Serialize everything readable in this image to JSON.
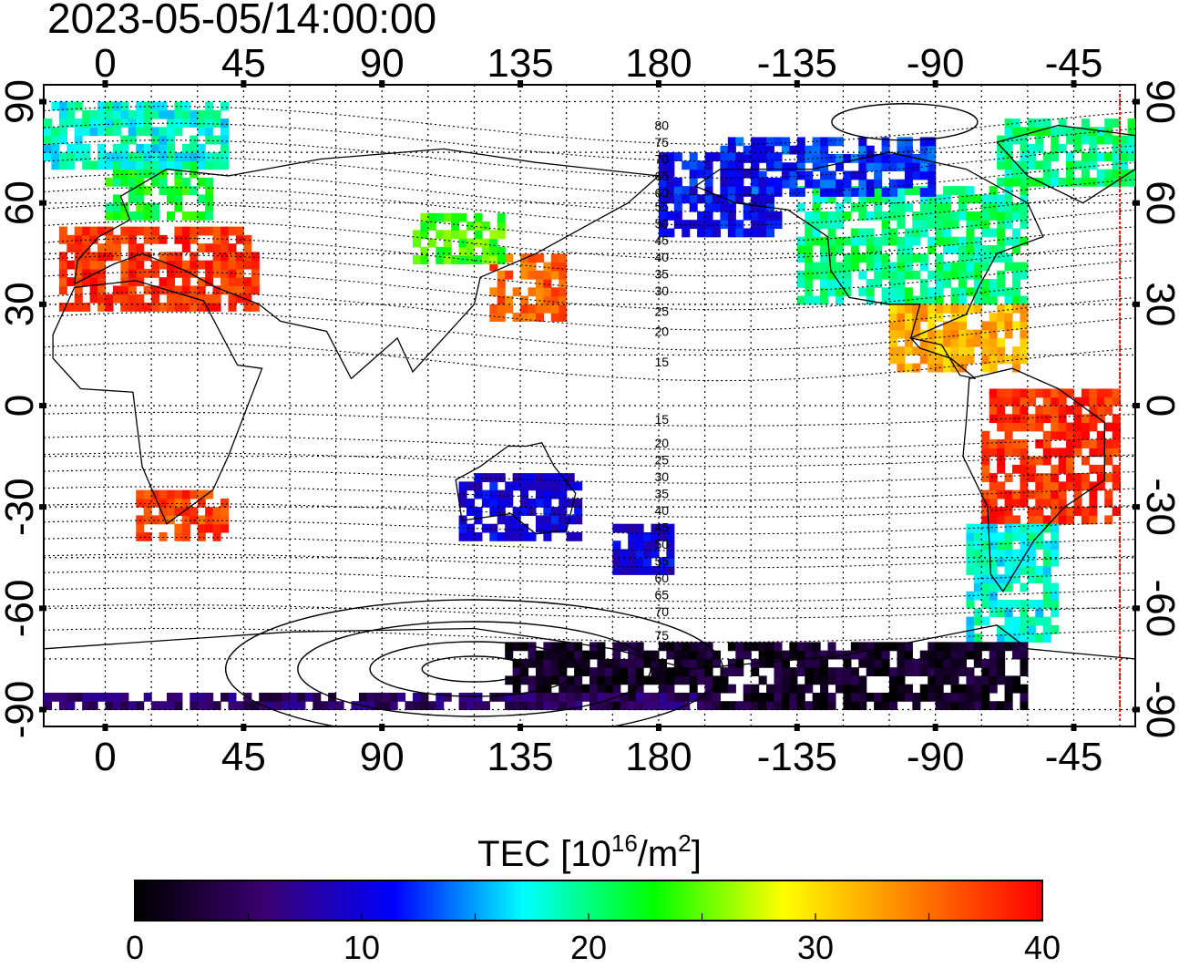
{
  "timestamp": "2023-05-05/14:00:00",
  "map": {
    "lon_ticks": [
      "0",
      "45",
      "90",
      "135",
      "180",
      "-135",
      "-90",
      "-45"
    ],
    "lon_tick_values": [
      0,
      45,
      90,
      135,
      180,
      225,
      270,
      315
    ],
    "lat_ticks": [
      "90",
      "60",
      "30",
      "0",
      "-30",
      "-60",
      "-90"
    ],
    "lat_tick_values": [
      90,
      60,
      30,
      0,
      -30,
      -60,
      -90
    ],
    "lon_range": [
      -20,
      335
    ],
    "lat_range": [
      -95,
      95
    ],
    "grid": true,
    "terminator_lon": 330,
    "contour_labels": [
      {
        "text": "80",
        "lat": 83
      },
      {
        "text": "75",
        "lat": 78
      },
      {
        "text": "70",
        "lat": 73
      },
      {
        "text": "65",
        "lat": 68
      },
      {
        "text": "60",
        "lat": 63
      },
      {
        "text": "55",
        "lat": 59
      },
      {
        "text": "50",
        "lat": 54
      },
      {
        "text": "45",
        "lat": 49
      },
      {
        "text": "40",
        "lat": 44
      },
      {
        "text": "35",
        "lat": 39
      },
      {
        "text": "30",
        "lat": 34
      },
      {
        "text": "25",
        "lat": 28
      },
      {
        "text": "20",
        "lat": 22
      },
      {
        "text": "15",
        "lat": 13
      },
      {
        "text": "15",
        "lat": -4
      },
      {
        "text": "20",
        "lat": -11
      },
      {
        "text": "25",
        "lat": -16
      },
      {
        "text": "30",
        "lat": -21
      },
      {
        "text": "35",
        "lat": -26
      },
      {
        "text": "40",
        "lat": -31
      },
      {
        "text": "45",
        "lat": -36
      },
      {
        "text": "50",
        "lat": -41
      },
      {
        "text": "55",
        "lat": -46
      },
      {
        "text": "60",
        "lat": -51
      },
      {
        "text": "65",
        "lat": -56
      },
      {
        "text": "70",
        "lat": -61
      },
      {
        "text": "75",
        "lat": -68
      }
    ]
  },
  "colorbar": {
    "label_main": "TEC  [10",
    "label_sup1": "16",
    "label_mid": "/m",
    "label_sup2": "2",
    "label_end": "]",
    "ticks": [
      "0",
      "10",
      "20",
      "30",
      "40"
    ],
    "tick_values": [
      0,
      10,
      20,
      30,
      40
    ],
    "range": [
      0,
      40
    ],
    "stops": [
      "#000000",
      "#3a0070",
      "#0000ff",
      "#00ffff",
      "#00ff00",
      "#ffff00",
      "#ff7f00",
      "#ff0000"
    ]
  },
  "tec_regions": [
    {
      "name": "europe",
      "lon": [
        -15,
        50
      ],
      "lat": [
        52,
        28
      ],
      "value": 38
    },
    {
      "name": "scandinavia",
      "lon": [
        0,
        35
      ],
      "lat": [
        72,
        55
      ],
      "value": 22
    },
    {
      "name": "arctic-europe",
      "lon": [
        -20,
        40
      ],
      "lat": [
        88,
        70
      ],
      "value": 18
    },
    {
      "name": "north-america",
      "lon": [
        225,
        300
      ],
      "lat": [
        65,
        30
      ],
      "value": 20
    },
    {
      "name": "canada-north",
      "lon": [
        200,
        270
      ],
      "lat": [
        78,
        62
      ],
      "value": 12
    },
    {
      "name": "greenland",
      "lon": [
        290,
        335
      ],
      "lat": [
        85,
        65
      ],
      "value": 20
    },
    {
      "name": "alaska",
      "lon": [
        180,
        220
      ],
      "lat": [
        75,
        50
      ],
      "value": 11
    },
    {
      "name": "caribbean",
      "lon": [
        255,
        300
      ],
      "lat": [
        30,
        10
      ],
      "value": 32
    },
    {
      "name": "south-america",
      "lon": [
        285,
        330
      ],
      "lat": [
        5,
        -35
      ],
      "value": 38
    },
    {
      "name": "patagonia",
      "lon": [
        280,
        310
      ],
      "lat": [
        -35,
        -70
      ],
      "value": 18
    },
    {
      "name": "japan",
      "lon": [
        125,
        150
      ],
      "lat": [
        45,
        25
      ],
      "value": 36
    },
    {
      "name": "china-north",
      "lon": [
        100,
        130
      ],
      "lat": [
        55,
        42
      ],
      "value": 24
    },
    {
      "name": "southern-africa",
      "lon": [
        10,
        40
      ],
      "lat": [
        -25,
        -40
      ],
      "value": 37
    },
    {
      "name": "australia",
      "lon": [
        115,
        155
      ],
      "lat": [
        -20,
        -40
      ],
      "value": 10
    },
    {
      "name": "new-zealand",
      "lon": [
        165,
        185
      ],
      "lat": [
        -35,
        -50
      ],
      "value": 10
    },
    {
      "name": "antarctica",
      "lon": [
        130,
        300
      ],
      "lat": [
        -72,
        -90
      ],
      "value": 2
    },
    {
      "name": "antarctic-rim",
      "lon": [
        -20,
        200
      ],
      "lat": [
        -87,
        -90
      ],
      "value": 5
    }
  ]
}
